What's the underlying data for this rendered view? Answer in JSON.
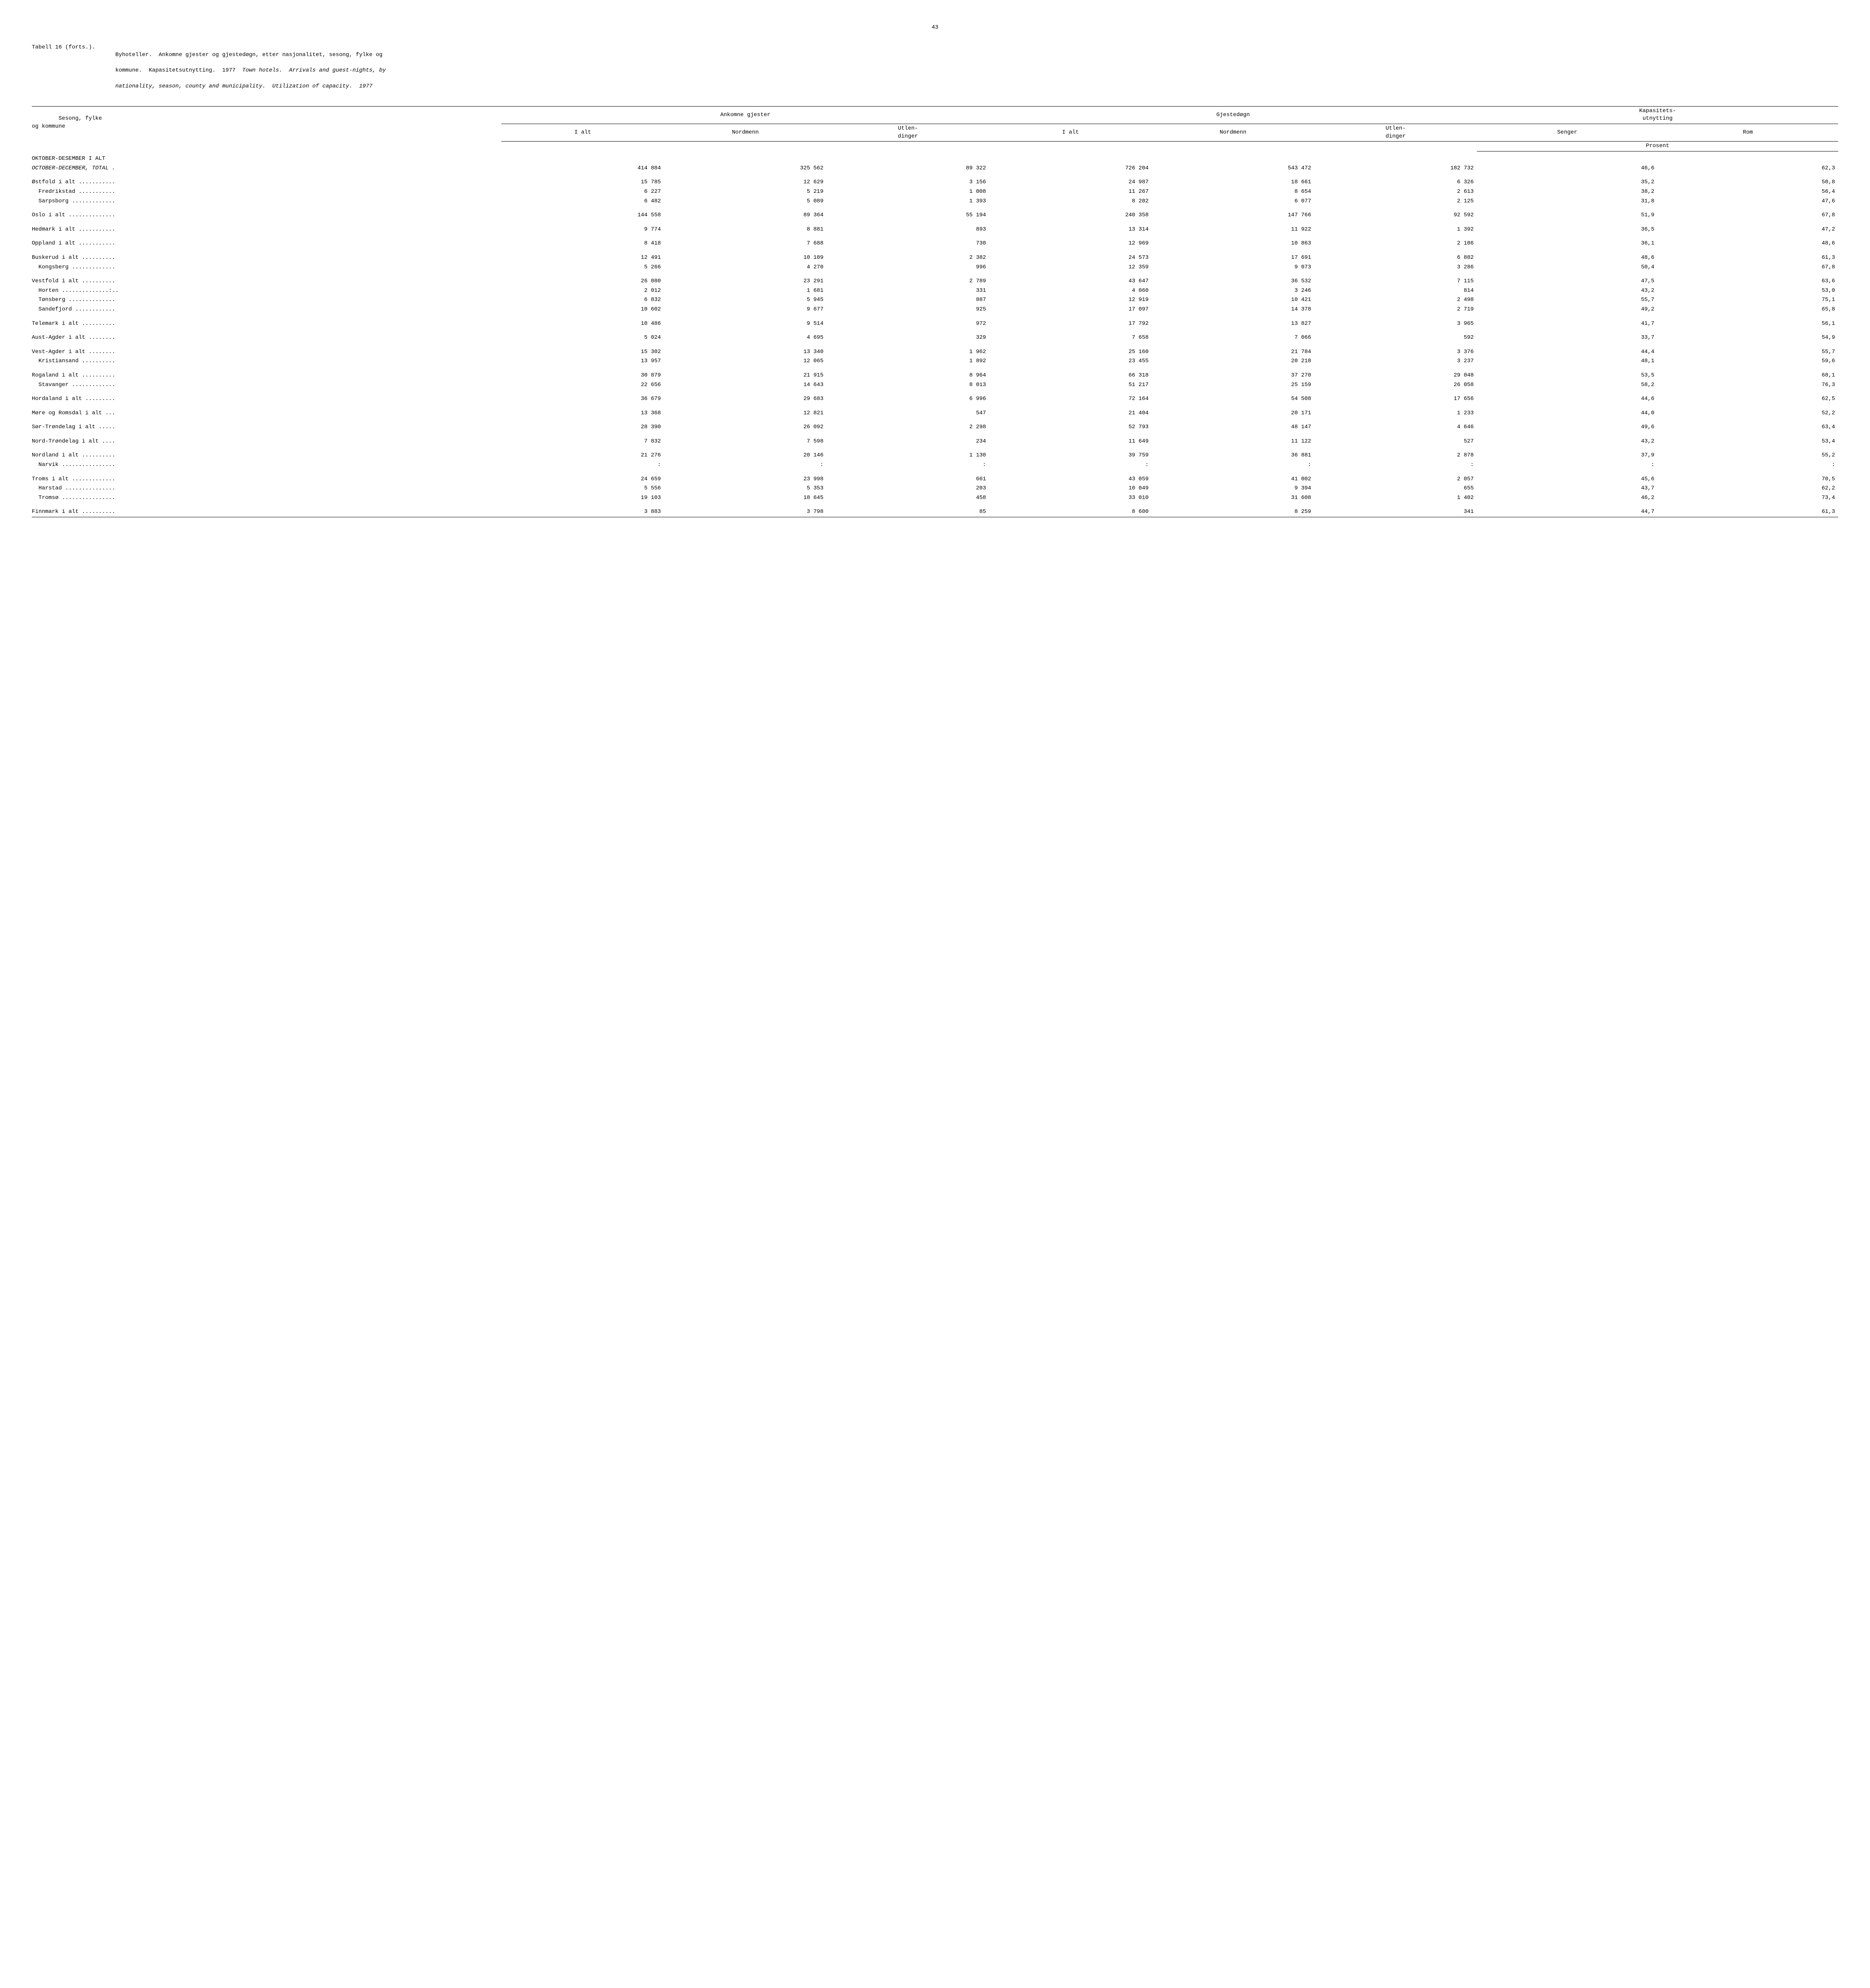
{
  "page": {
    "number": "43"
  },
  "caption": {
    "label": "Tabell 16 (forts.).",
    "line1": "Byhoteller.  Ankomne gjester og gjestedøgn, etter nasjonalitet, sesong, fylke og",
    "line2": "kommune.  Kapasitetsutnytting.  1977  Town hotels.  Arrivals and guest-nights, by",
    "line3": "nationality, season, county and municipality.  Utilization of capacity.  1977"
  },
  "header": {
    "stub1": "Sesong, fylke",
    "stub2": "og kommune",
    "group1": "Ankomne gjester",
    "group2": "Gjestedøgn",
    "group3": "Kapasitets-\nutnytting",
    "c1": "I alt",
    "c2": "Nordmenn",
    "c3": "Utlen-\ndinger",
    "c4": "I alt",
    "c5": "Nordmenn",
    "c6": "Utlen-\ndinger",
    "c7": "Senger",
    "c8": "Rom",
    "prosent": "Prosent"
  },
  "rows": [
    {
      "indent": 0,
      "label": "OKTOBER-DESEMBER I ALT",
      "suffix": "",
      "v": [
        "",
        "",
        "",
        "",
        "",
        "",
        "",
        ""
      ],
      "gap": "section-head"
    },
    {
      "indent": 0,
      "label": "OCTOBER-DECEMBER, TOTAL",
      "suffix": " .",
      "ital": true,
      "v": [
        "414 884",
        "325 562",
        "89 322",
        "726 204",
        "543 472",
        "182 732",
        "46,6",
        "62,3"
      ]
    },
    {
      "indent": 0,
      "label": "Østfold i alt",
      "suffix": " ...........",
      "v": [
        "15 785",
        "12 629",
        "3 156",
        "24 987",
        "18 661",
        "6 326",
        "35,2",
        "50,8"
      ],
      "gap": "section-gap"
    },
    {
      "indent": 1,
      "label": "Fredrikstad",
      "suffix": " ...........",
      "v": [
        "6 227",
        "5 219",
        "1 008",
        "11 267",
        "8 654",
        "2 613",
        "38,2",
        "56,4"
      ]
    },
    {
      "indent": 1,
      "label": "Sarpsborg",
      "suffix": " .............",
      "v": [
        "6 482",
        "5 089",
        "1 393",
        "8 202",
        "6 077",
        "2 125",
        "31,8",
        "47,6"
      ]
    },
    {
      "indent": 0,
      "label": "Oslo i alt",
      "suffix": " ..............",
      "v": [
        "144 558",
        "89 364",
        "55 194",
        "240 358",
        "147 766",
        "92 592",
        "51,9",
        "67,8"
      ],
      "gap": "section-gap"
    },
    {
      "indent": 0,
      "label": "Hedmark i alt",
      "suffix": " ...........",
      "v": [
        "9 774",
        "8 881",
        "893",
        "13 314",
        "11 922",
        "1 392",
        "36,5",
        "47,2"
      ],
      "gap": "section-gap"
    },
    {
      "indent": 0,
      "label": "Oppland i alt",
      "suffix": " ...........",
      "v": [
        "8 418",
        "7 688",
        "730",
        "12 969",
        "10 863",
        "2 106",
        "36,1",
        "48,6"
      ],
      "gap": "section-gap"
    },
    {
      "indent": 0,
      "label": "Buskerud i alt",
      "suffix": " ..........",
      "v": [
        "12 491",
        "10 109",
        "2 382",
        "24 573",
        "17 691",
        "6 882",
        "48,6",
        "61,3"
      ],
      "gap": "section-gap"
    },
    {
      "indent": 1,
      "label": "Kongsberg",
      "suffix": " .............",
      "v": [
        "5 266",
        "4 270",
        "996",
        "12 359",
        "9 073",
        "3 286",
        "50,4",
        "67,8"
      ]
    },
    {
      "indent": 0,
      "label": "Vestfold i alt",
      "suffix": " ..........",
      "v": [
        "26 080",
        "23 291",
        "2 789",
        "43 647",
        "36 532",
        "7 115",
        "47,5",
        "63,6"
      ],
      "gap": "section-gap"
    },
    {
      "indent": 1,
      "label": "Horten",
      "suffix": " ..............:..",
      "v": [
        "2 012",
        "1 681",
        "331",
        "4 060",
        "3 246",
        "814",
        "43,2",
        "53,0"
      ]
    },
    {
      "indent": 1,
      "label": "Tønsberg",
      "suffix": " ..............",
      "v": [
        "6 832",
        "5 945",
        "887",
        "12 919",
        "10 421",
        "2 498",
        "55,7",
        "75,1"
      ]
    },
    {
      "indent": 1,
      "label": "Sandefjord",
      "suffix": " ............",
      "v": [
        "10 602",
        "9 677",
        "925",
        "17 097",
        "14 378",
        "2 719",
        "49,2",
        "65,8"
      ]
    },
    {
      "indent": 0,
      "label": "Telemark i alt",
      "suffix": " ..........",
      "v": [
        "10 486",
        "9 514",
        "972",
        "17 792",
        "13 827",
        "3 965",
        "41,7",
        "56,1"
      ],
      "gap": "section-gap"
    },
    {
      "indent": 0,
      "label": "Aust-Agder i alt",
      "suffix": " ........",
      "v": [
        "5 024",
        "4 695",
        "329",
        "7 658",
        "7 066",
        "592",
        "33,7",
        "54,9"
      ],
      "gap": "section-gap"
    },
    {
      "indent": 0,
      "label": "Vest-Agder i alt",
      "suffix": " ........",
      "v": [
        "15 302",
        "13 340",
        "1 962",
        "25 160",
        "21 784",
        "3 376",
        "44,4",
        "55,7"
      ],
      "gap": "section-gap"
    },
    {
      "indent": 1,
      "label": "Kristiansand",
      "suffix": " ..........",
      "v": [
        "13 957",
        "12 065",
        "1 892",
        "23 455",
        "20 218",
        "3 237",
        "48,1",
        "59,6"
      ]
    },
    {
      "indent": 0,
      "label": "Rogaland i alt",
      "suffix": " ..........",
      "v": [
        "30 879",
        "21 915",
        "8 964",
        "66 318",
        "37 270",
        "29 048",
        "53,5",
        "68,1"
      ],
      "gap": "section-gap"
    },
    {
      "indent": 1,
      "label": "Stavanger",
      "suffix": " .............",
      "v": [
        "22 656",
        "14 643",
        "8 013",
        "51 217",
        "25 159",
        "26 058",
        "58,2",
        "76,3"
      ]
    },
    {
      "indent": 0,
      "label": "Hordaland i alt",
      "suffix": " .........",
      "v": [
        "36 679",
        "29 683",
        "6 996",
        "72 164",
        "54 508",
        "17 656",
        "44,6",
        "62,5"
      ],
      "gap": "section-gap"
    },
    {
      "indent": 0,
      "label": "Møre og Romsdal i alt",
      "suffix": " ...",
      "v": [
        "13 368",
        "12 821",
        "547",
        "21 404",
        "20 171",
        "1 233",
        "44,0",
        "52,2"
      ],
      "gap": "section-gap"
    },
    {
      "indent": 0,
      "label": "Sør-Trøndelag i alt",
      "suffix": " .....",
      "v": [
        "28 390",
        "26 092",
        "2 298",
        "52 793",
        "48 147",
        "4 646",
        "49,6",
        "63,4"
      ],
      "gap": "section-gap"
    },
    {
      "indent": 0,
      "label": "Nord-Trøndelag i alt",
      "suffix": " ....",
      "v": [
        "7 832",
        "7 598",
        "234",
        "11 649",
        "11 122",
        "527",
        "43,2",
        "53,4"
      ],
      "gap": "section-gap"
    },
    {
      "indent": 0,
      "label": "Nordland i alt",
      "suffix": " ..........",
      "v": [
        "21 276",
        "20 146",
        "1 130",
        "39 759",
        "36 881",
        "2 878",
        "37,9",
        "55,2"
      ],
      "gap": "section-gap"
    },
    {
      "indent": 1,
      "label": "Narvik",
      "suffix": " ................",
      "v": [
        ":",
        ":",
        ":",
        ":",
        ":",
        ":",
        ":",
        ":"
      ]
    },
    {
      "indent": 0,
      "label": "Troms i alt",
      "suffix": " .............",
      "v": [
        "24 659",
        "23 998",
        "661",
        "43 059",
        "41 002",
        "2 057",
        "45,6",
        "70,5"
      ],
      "gap": "section-gap"
    },
    {
      "indent": 1,
      "label": "Harstad",
      "suffix": " ...............",
      "v": [
        "5 556",
        "5 353",
        "203",
        "10 049",
        "9 394",
        "655",
        "43,7",
        "62,2"
      ]
    },
    {
      "indent": 1,
      "label": "Tromsø",
      "suffix": " ................",
      "v": [
        "19 103",
        "18 645",
        "458",
        "33 010",
        "31 608",
        "1 402",
        "46,2",
        "73,4"
      ]
    },
    {
      "indent": 0,
      "label": "Finnmark i alt",
      "suffix": " ..........",
      "v": [
        "3 883",
        "3 798",
        "85",
        "8 600",
        "8 259",
        "341",
        "44,7",
        "61,3"
      ],
      "gap": "section-gap"
    }
  ]
}
